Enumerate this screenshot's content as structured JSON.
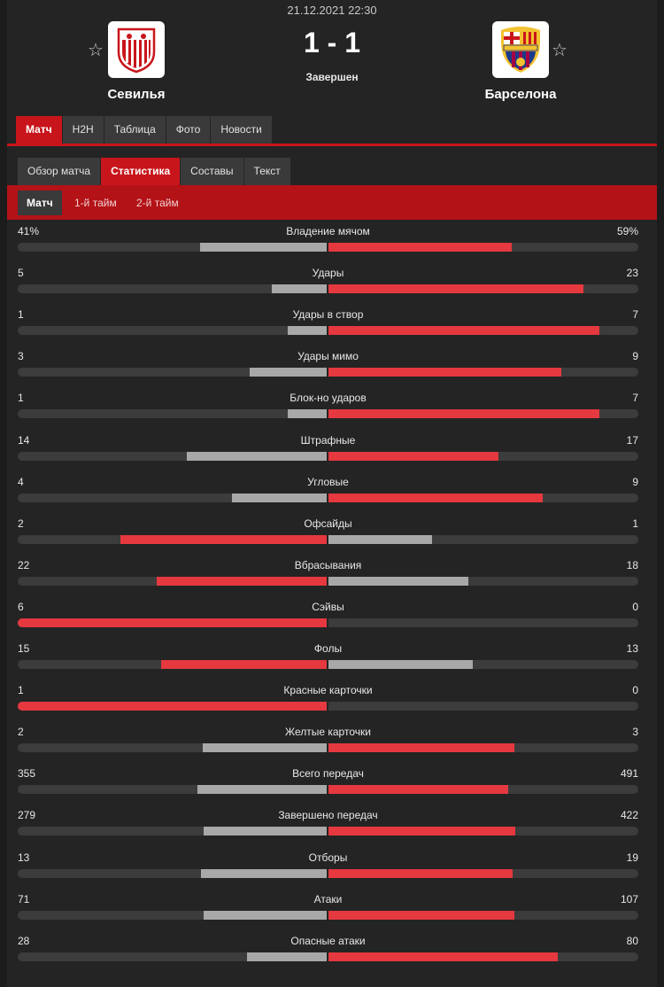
{
  "match": {
    "datetime": "21.12.2021 22:30",
    "score": "1 - 1",
    "status": "Завершен",
    "home": {
      "name": "Севилья",
      "favorite_icon": "☆"
    },
    "away": {
      "name": "Барселона",
      "favorite_icon": "☆"
    }
  },
  "colors": {
    "accent": "#c8151b",
    "bar_win": "#e5383f",
    "bar_lose": "#a8a8a8",
    "bar_track": "#3c3c3c"
  },
  "tabs_main": [
    "Матч",
    "H2H",
    "Таблица",
    "Фото",
    "Новости"
  ],
  "tabs_sub": [
    "Обзор матча",
    "Статистика",
    "Составы",
    "Текст"
  ],
  "periods": [
    "Матч",
    "1-й тайм",
    "2-й тайм"
  ],
  "stats": [
    {
      "name": "Владение мячом",
      "home": "41%",
      "away": "59%",
      "hv": 41,
      "av": 59
    },
    {
      "name": "Удары",
      "home": "5",
      "away": "23",
      "hv": 5,
      "av": 23
    },
    {
      "name": "Удары в створ",
      "home": "1",
      "away": "7",
      "hv": 1,
      "av": 7
    },
    {
      "name": "Удары мимо",
      "home": "3",
      "away": "9",
      "hv": 3,
      "av": 9
    },
    {
      "name": "Блок-но ударов",
      "home": "1",
      "away": "7",
      "hv": 1,
      "av": 7
    },
    {
      "name": "Штрафные",
      "home": "14",
      "away": "17",
      "hv": 14,
      "av": 17
    },
    {
      "name": "Угловые",
      "home": "4",
      "away": "9",
      "hv": 4,
      "av": 9
    },
    {
      "name": "Офсайды",
      "home": "2",
      "away": "1",
      "hv": 2,
      "av": 1
    },
    {
      "name": "Вбрасывания",
      "home": "22",
      "away": "18",
      "hv": 22,
      "av": 18
    },
    {
      "name": "Сэйвы",
      "home": "6",
      "away": "0",
      "hv": 6,
      "av": 0
    },
    {
      "name": "Фолы",
      "home": "15",
      "away": "13",
      "hv": 15,
      "av": 13
    },
    {
      "name": "Красные карточки",
      "home": "1",
      "away": "0",
      "hv": 1,
      "av": 0
    },
    {
      "name": "Желтые карточки",
      "home": "2",
      "away": "3",
      "hv": 2,
      "av": 3
    },
    {
      "name": "Всего передач",
      "home": "355",
      "away": "491",
      "hv": 355,
      "av": 491
    },
    {
      "name": "Завершено передач",
      "home": "279",
      "away": "422",
      "hv": 279,
      "av": 422
    },
    {
      "name": "Отборы",
      "home": "13",
      "away": "19",
      "hv": 13,
      "av": 19
    },
    {
      "name": "Атаки",
      "home": "71",
      "away": "107",
      "hv": 71,
      "av": 107
    },
    {
      "name": "Опасные атаки",
      "home": "28",
      "away": "80",
      "hv": 28,
      "av": 80
    }
  ]
}
